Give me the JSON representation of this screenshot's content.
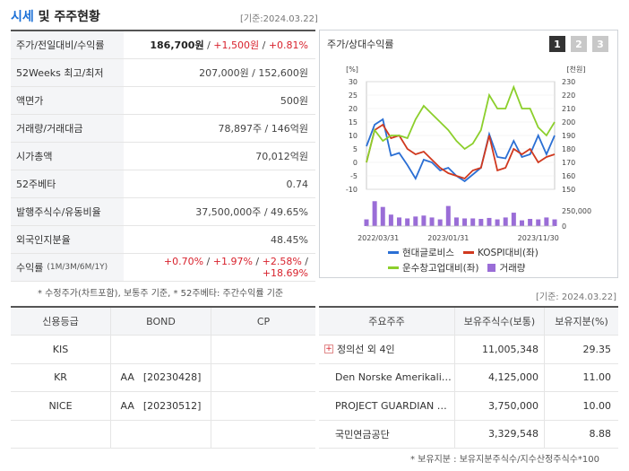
{
  "header": {
    "title_accent": "시세",
    "title_rest": " 및 주주현황",
    "base_date": "[기준:2024.03.22]"
  },
  "stats": [
    {
      "label": "주가/전일대비/수익률",
      "parts": [
        {
          "t": "186,700원",
          "style": "bold"
        },
        {
          "t": " / ",
          "style": "plain"
        },
        {
          "t": "+1,500원",
          "style": "red"
        },
        {
          "t": " / ",
          "style": "plain"
        },
        {
          "t": "+0.81%",
          "style": "red"
        }
      ]
    },
    {
      "label": "52Weeks 최고/최저",
      "parts": [
        {
          "t": "207,000원 / 152,600원",
          "style": "plain"
        }
      ]
    },
    {
      "label": "액면가",
      "parts": [
        {
          "t": "500원",
          "style": "plain"
        }
      ]
    },
    {
      "label": "거래량/거래대금",
      "parts": [
        {
          "t": "78,897주 / 146억원",
          "style": "plain"
        }
      ]
    },
    {
      "label": "시가총액",
      "parts": [
        {
          "t": "70,012억원",
          "style": "plain"
        }
      ]
    },
    {
      "label": "52주베타",
      "parts": [
        {
          "t": "0.74",
          "style": "plain"
        }
      ]
    },
    {
      "label": "발행주식수/유동비율",
      "parts": [
        {
          "t": "37,500,000주 / 49.65%",
          "style": "plain"
        }
      ]
    },
    {
      "label": "외국인지분율",
      "parts": [
        {
          "t": "48.45%",
          "style": "plain"
        }
      ]
    },
    {
      "label": "수익률",
      "label_small": "(1M/3M/6M/1Y)",
      "parts": [
        {
          "t": "+0.70%",
          "style": "red"
        },
        {
          "t": " / ",
          "style": "plain"
        },
        {
          "t": "+1.97%",
          "style": "red"
        },
        {
          "t": " / ",
          "style": "plain"
        },
        {
          "t": "+2.58%",
          "style": "red"
        },
        {
          "t": " / ",
          "style": "plain"
        },
        {
          "t": "+18.69%",
          "style": "red"
        }
      ]
    }
  ],
  "stats_footnote": "* 수정주가(차트포함), 보통주 기준, * 52주베타: 주간수익률 기준",
  "chart_panel": {
    "title": "주가/상대수익률",
    "pages": [
      "1",
      "2",
      "3"
    ],
    "active_page": 0,
    "legend": [
      {
        "label": "현대글로비스",
        "color": "#2b6fd4",
        "kind": "line"
      },
      {
        "label": "KOSPI대비(좌)",
        "color": "#d0391f",
        "kind": "line"
      },
      {
        "label": "운수창고업대비(좌)",
        "color": "#8ccf2c",
        "kind": "line"
      },
      {
        "label": "거래량",
        "color": "#9a6dd7",
        "kind": "bar"
      }
    ]
  },
  "chart_data": {
    "type": "line",
    "left_axis_unit": "[%]",
    "right_axis_unit": "[천원]",
    "left_ticks": [
      30,
      25,
      20,
      15,
      10,
      5,
      0,
      -5,
      -10
    ],
    "right_ticks": [
      230,
      220,
      210,
      200,
      190,
      180,
      170,
      160,
      150
    ],
    "volume_ticks": [
      "250,000",
      "0"
    ],
    "x_tick_labels": [
      "2022/03/31",
      "2023/01/31",
      "2023/11/30"
    ],
    "ylim_left": [
      -10,
      30
    ],
    "ylim_right": [
      150,
      230
    ],
    "volume_max": 300000,
    "series": [
      {
        "name": "현대글로비스",
        "axis": "right",
        "values": [
          182,
          198,
          202,
          175,
          177,
          168,
          158,
          172,
          170,
          164,
          166,
          160,
          156,
          161,
          166,
          191,
          174,
          173,
          186,
          174,
          176,
          190,
          176,
          190
        ]
      },
      {
        "name": "KOSPI대비(좌)",
        "axis": "left",
        "values": [
          0,
          12,
          14,
          9,
          10,
          5,
          3,
          4,
          1,
          -2,
          -4,
          -5,
          -6,
          -3,
          -2,
          10,
          -3,
          -2,
          5,
          3,
          5,
          0,
          2,
          3
        ]
      },
      {
        "name": "운수창고업대비(좌)",
        "axis": "left",
        "values": [
          0,
          12,
          8,
          10,
          10,
          9,
          16,
          21,
          18,
          15,
          12,
          8,
          5,
          7,
          12,
          25,
          20,
          20,
          28,
          20,
          20,
          13,
          10,
          15
        ]
      }
    ],
    "volume": [
      70000,
      260000,
      200000,
      120000,
      90000,
      80000,
      100000,
      110000,
      90000,
      70000,
      210000,
      90000,
      80000,
      80000,
      75000,
      85000,
      70000,
      90000,
      140000,
      60000,
      75000,
      70000,
      90000,
      70000
    ]
  },
  "credit": {
    "headers": [
      "신용등급",
      "BOND",
      "CP"
    ],
    "rows": [
      {
        "agency": "KIS",
        "bond_grade": "",
        "bond_date": "",
        "cp": ""
      },
      {
        "agency": "KR",
        "bond_grade": "AA",
        "bond_date": "[20230428]",
        "cp": ""
      },
      {
        "agency": "NICE",
        "bond_grade": "AA",
        "bond_date": "[20230512]",
        "cp": ""
      },
      {
        "agency": "",
        "bond_grade": "",
        "bond_date": "",
        "cp": ""
      }
    ]
  },
  "holders": {
    "base_date": "[기준: 2024.03.22]",
    "headers": [
      "주요주주",
      "보유주식수(보통)",
      "보유지분(%)"
    ],
    "rows": [
      {
        "name": "정의선 외 4인",
        "shares": "11,005,348",
        "pct": "29.35",
        "expandable": true
      },
      {
        "name": "Den Norske Amerikalin…",
        "shares": "4,125,000",
        "pct": "11.00",
        "expandable": false
      },
      {
        "name": "PROJECT GUARDIAN …",
        "shares": "3,750,000",
        "pct": "10.00",
        "expandable": false
      },
      {
        "name": "국민연금공단",
        "shares": "3,329,548",
        "pct": "8.88",
        "expandable": false
      }
    ],
    "footnote": "* 보유지분 : 보유지분주식수/지수산정주식수*100"
  }
}
